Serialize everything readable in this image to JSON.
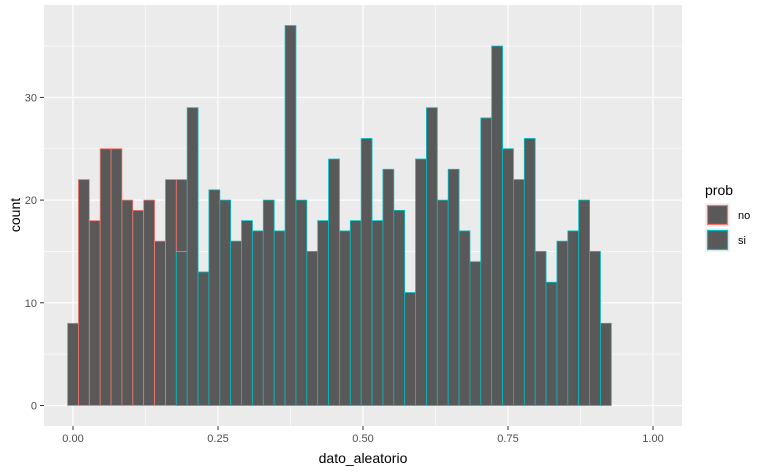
{
  "chart_data": {
    "type": "bar",
    "title": "",
    "xlabel": "dato_aleatorio",
    "ylabel": "count",
    "xlim": [
      -0.05,
      1.05
    ],
    "ylim": [
      -2,
      39
    ],
    "xticks": [
      0,
      0.25,
      0.5,
      0.75,
      1
    ],
    "xtick_labels": [
      "0.00",
      "0.25",
      "0.50",
      "0.75",
      "1.00"
    ],
    "yticks": [
      0,
      10,
      20,
      30
    ],
    "yticks_minor": [
      5,
      15,
      25,
      35
    ],
    "grid": true,
    "bin_width": 0.01875,
    "bin_start": -0.009375,
    "bars": [
      {
        "group": "no",
        "count": 8
      },
      {
        "group": "no",
        "count": 22
      },
      {
        "group": "no",
        "count": 18
      },
      {
        "group": "no",
        "count": 25
      },
      {
        "group": "no",
        "count": 25
      },
      {
        "group": "no",
        "count": 20
      },
      {
        "group": "no",
        "count": 19
      },
      {
        "group": "no",
        "count": 20
      },
      {
        "group": "no",
        "count": 16
      },
      {
        "group": "no",
        "count": 22
      },
      {
        "group": "mixed",
        "count": 22,
        "si_count": 15
      },
      {
        "group": "si",
        "count": 29
      },
      {
        "group": "si",
        "count": 13
      },
      {
        "group": "si",
        "count": 21
      },
      {
        "group": "si",
        "count": 20
      },
      {
        "group": "si",
        "count": 16
      },
      {
        "group": "si",
        "count": 18
      },
      {
        "group": "si",
        "count": 17
      },
      {
        "group": "si",
        "count": 20
      },
      {
        "group": "si",
        "count": 17
      },
      {
        "group": "si",
        "count": 37
      },
      {
        "group": "si",
        "count": 20
      },
      {
        "group": "si",
        "count": 15
      },
      {
        "group": "si",
        "count": 18
      },
      {
        "group": "si",
        "count": 24
      },
      {
        "group": "si",
        "count": 17
      },
      {
        "group": "si",
        "count": 18
      },
      {
        "group": "si",
        "count": 26
      },
      {
        "group": "si",
        "count": 18
      },
      {
        "group": "si",
        "count": 23
      },
      {
        "group": "si",
        "count": 19
      },
      {
        "group": "si",
        "count": 11
      },
      {
        "group": "si",
        "count": 24
      },
      {
        "group": "si",
        "count": 29
      },
      {
        "group": "si",
        "count": 20
      },
      {
        "group": "si",
        "count": 23
      },
      {
        "group": "si",
        "count": 17
      },
      {
        "group": "si",
        "count": 14
      },
      {
        "group": "si",
        "count": 28
      },
      {
        "group": "si",
        "count": 35
      },
      {
        "group": "si",
        "count": 25
      },
      {
        "group": "si",
        "count": 22
      },
      {
        "group": "si",
        "count": 26
      },
      {
        "group": "si",
        "count": 15
      },
      {
        "group": "si",
        "count": 12
      },
      {
        "group": "si",
        "count": 16
      },
      {
        "group": "si",
        "count": 17
      },
      {
        "group": "si",
        "count": 20
      },
      {
        "group": "si",
        "count": 15
      },
      {
        "group": "si",
        "count": 8
      }
    ],
    "legend": {
      "title": "prob",
      "placement": "right",
      "items": [
        {
          "key": "no",
          "label": "no",
          "outline": "#F8766D"
        },
        {
          "key": "si",
          "label": "si",
          "outline": "#00BFC4"
        }
      ]
    },
    "colors": {
      "fill": "#595959",
      "panel": "#EBEBEB",
      "grid": "#FFFFFF",
      "no": "#F8766D",
      "si": "#00BFC4"
    }
  }
}
